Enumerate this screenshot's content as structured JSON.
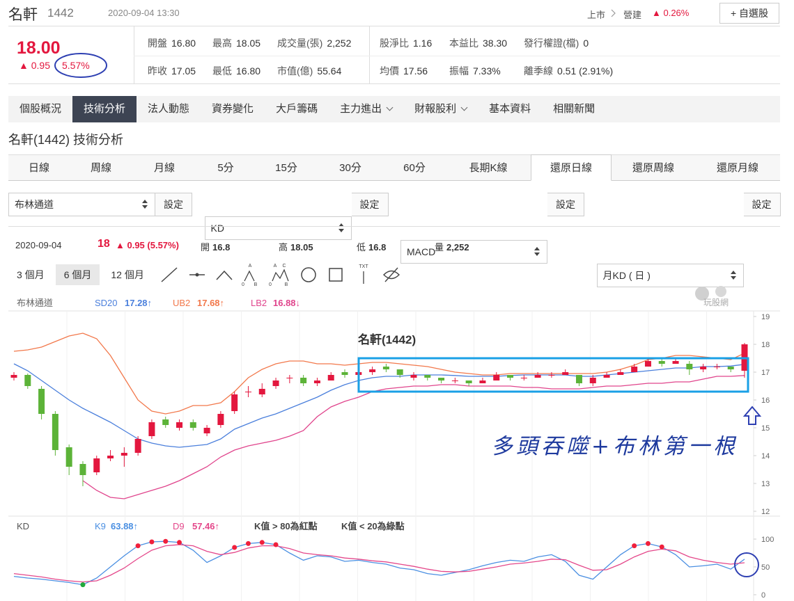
{
  "header": {
    "name": "名軒",
    "code": "1442",
    "time": "2020-09-04 13:30",
    "market": "上市",
    "industry": "營建",
    "industry_change": "▲ 0.26%",
    "watch_button": "+ 自選股"
  },
  "quote": {
    "price": "18.00",
    "change": "▲ 0.95",
    "change_pct": "5.57%",
    "fields": [
      [
        "開盤",
        "16.80"
      ],
      [
        "最高",
        "18.05"
      ],
      [
        "成交量(張)",
        "2,252"
      ],
      [
        "股淨比",
        "1.16"
      ],
      [
        "本益比",
        "38.30"
      ],
      [
        "發行權證(檔)",
        "0"
      ],
      [
        "昨收",
        "17.05"
      ],
      [
        "最低",
        "16.80"
      ],
      [
        "市值(億)",
        "55.64"
      ],
      [
        "均價",
        "17.56"
      ],
      [
        "振幅",
        "7.33%"
      ],
      [
        "離季線",
        "0.51 (2.91%)"
      ]
    ]
  },
  "nav": [
    {
      "label": "個股概況"
    },
    {
      "label": "技術分析",
      "active": true
    },
    {
      "label": "法人動態"
    },
    {
      "label": "資券變化"
    },
    {
      "label": "大戶籌碼"
    },
    {
      "label": "主力進出",
      "dropdown": true
    },
    {
      "label": "財報股利",
      "dropdown": true
    },
    {
      "label": "基本資料"
    },
    {
      "label": "相關新聞"
    }
  ],
  "page_title": "名軒(1442) 技術分析",
  "period_tabs": [
    {
      "label": "日線"
    },
    {
      "label": "周線"
    },
    {
      "label": "月線"
    },
    {
      "label": "5分"
    },
    {
      "label": "15分"
    },
    {
      "label": "30分"
    },
    {
      "label": "60分"
    },
    {
      "label": "長期K線"
    },
    {
      "label": "還原日線",
      "active": true
    },
    {
      "label": "還原周線"
    },
    {
      "label": "還原月線"
    }
  ],
  "indicators": [
    {
      "select": "布林通道",
      "button": "設定"
    },
    {
      "select": "KD",
      "button": "設定"
    },
    {
      "select": "MACD",
      "button": "設定"
    },
    {
      "select": "月KD ( 日 )",
      "button": "設定"
    }
  ],
  "summary": {
    "date": "2020-09-04",
    "close": "18",
    "change": "▲ 0.95 (5.57%)",
    "items": [
      [
        "開",
        "16.8"
      ],
      [
        "高",
        "18.05"
      ],
      [
        "低",
        "16.8"
      ],
      [
        "量",
        "2,252"
      ]
    ]
  },
  "ranges": [
    {
      "label": "3 個月"
    },
    {
      "label": "6 個月",
      "active": true
    },
    {
      "label": "12 個月"
    }
  ],
  "tools": [
    {
      "marks": [
        "A",
        "0",
        "B"
      ]
    },
    {
      "marks": [
        "A",
        "C",
        "0",
        "B"
      ]
    },
    {
      "marks": [
        "TXT"
      ]
    }
  ],
  "logo": "玩股網",
  "chart_data": [
    {
      "type": "candlestick",
      "title": "名軒(1442)",
      "legend_title": "布林通道",
      "annotation": "多頭吞噬+布林第一根",
      "up_color": "#e3173e",
      "down_color": "#5cb338",
      "ylim": [
        12,
        19
      ],
      "yticks": [
        12,
        13,
        14,
        15,
        16,
        17,
        18,
        19
      ],
      "grid": false,
      "ohlc": [
        [
          16.8,
          17.0,
          16.7,
          16.9
        ],
        [
          16.9,
          16.95,
          16.4,
          16.5
        ],
        [
          16.4,
          16.5,
          15.3,
          15.5
        ],
        [
          15.5,
          15.6,
          14.0,
          14.2
        ],
        [
          14.3,
          14.4,
          13.3,
          13.6
        ],
        [
          13.7,
          13.8,
          12.9,
          13.3
        ],
        [
          13.4,
          14.0,
          13.3,
          13.9
        ],
        [
          13.9,
          14.2,
          13.8,
          14.0
        ],
        [
          14.0,
          14.3,
          13.6,
          14.1
        ],
        [
          14.1,
          14.7,
          14.0,
          14.6
        ],
        [
          14.7,
          15.3,
          14.6,
          15.2
        ],
        [
          15.3,
          15.4,
          15.0,
          15.1
        ],
        [
          15.0,
          15.3,
          14.9,
          15.2
        ],
        [
          15.2,
          15.3,
          14.9,
          15.0
        ],
        [
          14.8,
          15.1,
          14.7,
          15.0
        ],
        [
          15.1,
          15.6,
          15.0,
          15.5
        ],
        [
          15.6,
          16.3,
          15.5,
          16.2
        ],
        [
          16.3,
          16.5,
          16.1,
          16.3
        ],
        [
          16.2,
          16.6,
          16.1,
          16.4
        ],
        [
          16.5,
          16.8,
          16.4,
          16.7
        ],
        [
          16.8,
          16.9,
          16.6,
          16.8
        ],
        [
          16.8,
          16.9,
          16.5,
          16.6
        ],
        [
          16.6,
          16.8,
          16.5,
          16.7
        ],
        [
          16.7,
          17.0,
          16.7,
          16.9
        ],
        [
          17.0,
          17.1,
          16.8,
          16.9
        ],
        [
          16.9,
          17.1,
          16.9,
          17.0
        ],
        [
          17.0,
          17.2,
          16.9,
          17.1
        ],
        [
          17.2,
          17.3,
          17.0,
          17.1
        ],
        [
          17.1,
          17.1,
          16.8,
          16.9
        ],
        [
          16.8,
          17.0,
          16.7,
          16.9
        ],
        [
          16.9,
          16.9,
          16.7,
          16.8
        ],
        [
          16.8,
          16.8,
          16.6,
          16.7
        ],
        [
          16.7,
          16.8,
          16.6,
          16.7
        ],
        [
          16.7,
          16.7,
          16.5,
          16.6
        ],
        [
          16.6,
          16.8,
          16.6,
          16.7
        ],
        [
          16.7,
          17.0,
          16.7,
          16.9
        ],
        [
          16.9,
          16.9,
          16.7,
          16.8
        ],
        [
          16.8,
          16.9,
          16.7,
          16.8
        ],
        [
          16.8,
          17.0,
          16.8,
          16.9
        ],
        [
          16.9,
          17.0,
          16.8,
          16.9
        ],
        [
          16.9,
          17.1,
          16.9,
          17.0
        ],
        [
          16.9,
          16.9,
          16.5,
          16.6
        ],
        [
          16.6,
          16.9,
          16.5,
          16.8
        ],
        [
          16.8,
          17.0,
          16.8,
          16.9
        ],
        [
          16.9,
          17.1,
          16.9,
          17.0
        ],
        [
          17.0,
          17.3,
          17.0,
          17.2
        ],
        [
          17.2,
          17.5,
          17.2,
          17.4
        ],
        [
          17.4,
          17.5,
          17.2,
          17.3
        ],
        [
          17.3,
          17.5,
          17.3,
          17.4
        ],
        [
          17.3,
          17.4,
          16.9,
          17.1
        ],
        [
          17.1,
          17.3,
          17.0,
          17.2
        ],
        [
          17.2,
          17.3,
          17.1,
          17.2
        ],
        [
          17.2,
          17.2,
          17.0,
          17.1
        ],
        [
          17.05,
          18.05,
          16.8,
          18.0
        ]
      ],
      "series": [
        {
          "name": "SD20",
          "value_label": "17.28↑",
          "color": "#4a7fdc",
          "values": [
            17.3,
            17.05,
            16.7,
            16.35,
            16.0,
            15.7,
            15.45,
            15.2,
            14.9,
            14.6,
            14.45,
            14.35,
            14.3,
            14.35,
            14.4,
            14.6,
            14.95,
            15.15,
            15.35,
            15.5,
            15.7,
            15.9,
            16.1,
            16.35,
            16.55,
            16.7,
            16.8,
            16.85,
            16.85,
            16.9,
            16.9,
            16.9,
            16.88,
            16.85,
            16.85,
            16.85,
            16.88,
            16.9,
            16.9,
            16.9,
            16.9,
            16.85,
            16.85,
            16.9,
            16.95,
            17.0,
            17.05,
            17.1,
            17.15,
            17.15,
            17.2,
            17.2,
            17.22,
            17.28
          ]
        },
        {
          "name": "UB2",
          "value_label": "17.68↑",
          "color": "#f2784b",
          "values": [
            17.75,
            17.8,
            17.9,
            18.1,
            18.3,
            18.4,
            18.2,
            17.6,
            16.8,
            16.0,
            15.6,
            15.5,
            15.6,
            15.8,
            15.8,
            15.9,
            16.3,
            16.8,
            17.1,
            17.3,
            17.4,
            17.4,
            17.3,
            17.3,
            17.25,
            17.3,
            17.35,
            17.35,
            17.3,
            17.25,
            17.2,
            17.1,
            17.0,
            16.95,
            16.9,
            16.9,
            16.95,
            16.95,
            16.95,
            16.95,
            16.95,
            16.95,
            16.95,
            17.0,
            17.1,
            17.25,
            17.45,
            17.5,
            17.6,
            17.6,
            17.55,
            17.5,
            17.45,
            17.68
          ]
        },
        {
          "name": "LB2",
          "value_label": "16.88↓",
          "color": "#e0448c",
          "values": [
            null,
            null,
            null,
            null,
            null,
            13.1,
            12.75,
            12.5,
            12.45,
            12.6,
            12.75,
            12.9,
            13.1,
            13.35,
            13.6,
            13.95,
            14.2,
            14.35,
            14.45,
            14.55,
            14.7,
            14.9,
            15.4,
            15.75,
            15.95,
            16.1,
            16.3,
            16.4,
            16.45,
            16.5,
            16.5,
            16.55,
            16.55,
            16.5,
            16.5,
            16.5,
            16.5,
            16.45,
            16.45,
            16.4,
            16.4,
            16.4,
            16.45,
            16.5,
            16.5,
            16.55,
            16.6,
            16.6,
            16.65,
            16.65,
            16.75,
            16.85,
            16.85,
            16.88
          ]
        }
      ]
    },
    {
      "type": "line",
      "title": "KD",
      "ylim": [
        0,
        100
      ],
      "yticks": [
        0,
        50,
        100
      ],
      "grid": false,
      "notes": [
        "K值 > 80為紅點",
        "K值 < 20為綠點"
      ],
      "marker_rules": [
        {
          "above": 80,
          "color": "#f0203c"
        },
        {
          "below": 20,
          "color": "#22a93c"
        }
      ],
      "series": [
        {
          "name": "K9",
          "value_label": "63.88↑",
          "color": "#4a8fe2",
          "values": [
            33,
            30,
            28,
            25,
            22,
            18,
            30,
            50,
            70,
            88,
            95,
            96,
            94,
            80,
            58,
            70,
            85,
            92,
            94,
            90,
            75,
            62,
            70,
            68,
            60,
            62,
            58,
            55,
            48,
            45,
            38,
            35,
            40,
            45,
            52,
            58,
            62,
            60,
            68,
            72,
            60,
            35,
            28,
            50,
            72,
            88,
            92,
            86,
            72,
            50,
            52,
            55,
            46,
            63.88
          ]
        },
        {
          "name": "D9",
          "value_label": "57.46↑",
          "color": "#e4478a",
          "values": [
            38,
            35,
            32,
            28,
            25,
            23,
            25,
            35,
            48,
            65,
            80,
            88,
            90,
            88,
            78,
            72,
            76,
            84,
            88,
            88,
            83,
            75,
            72,
            70,
            66,
            64,
            61,
            59,
            55,
            51,
            46,
            42,
            41,
            42,
            46,
            50,
            55,
            57,
            60,
            64,
            63,
            53,
            44,
            45,
            55,
            68,
            78,
            82,
            79,
            68,
            62,
            58,
            55,
            57.46
          ]
        }
      ]
    }
  ]
}
